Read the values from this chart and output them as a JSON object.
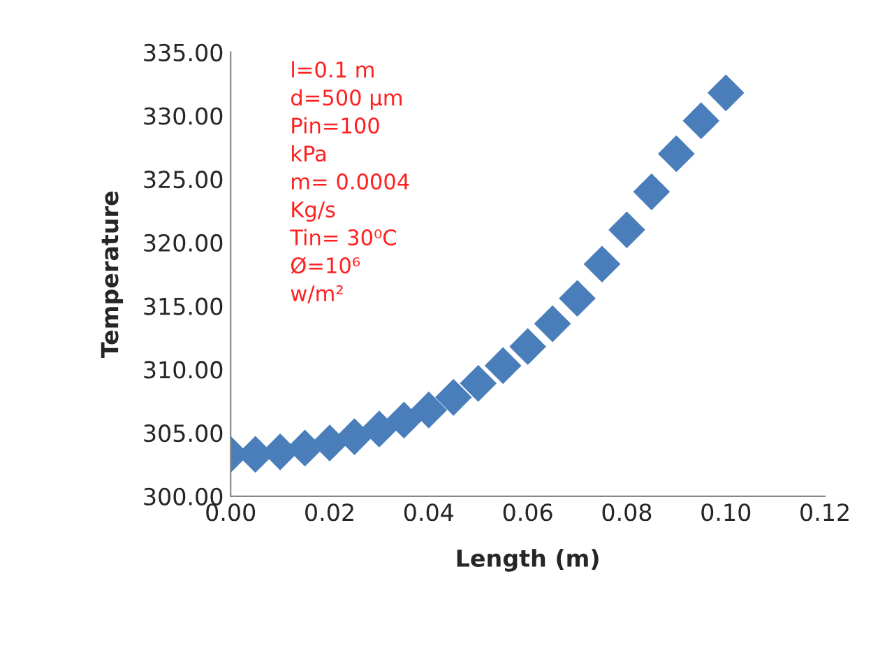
{
  "chart_data": {
    "type": "scatter",
    "xlabel": "Length (m)",
    "ylabel": "Temperature",
    "x": [
      0,
      0.005,
      0.01,
      0.015,
      0.02,
      0.025,
      0.03,
      0.035,
      0.04,
      0.045,
      0.05,
      0.055,
      0.06,
      0.065,
      0.07,
      0.075,
      0.08,
      0.085,
      0.09,
      0.095,
      0.1
    ],
    "series": [
      {
        "color": "#4a7ebb",
        "values": [
          303.3,
          303.3,
          303.5,
          303.8,
          304.2,
          304.7,
          305.3,
          306.0,
          306.8,
          307.8,
          308.9,
          310.3,
          311.8,
          313.6,
          315.6,
          318.3,
          321.0,
          324.0,
          327.0,
          329.6,
          331.8
        ]
      }
    ],
    "marker": "diamond",
    "grid": false,
    "legend": false,
    "xlim": [
      0,
      0.12
    ],
    "xticks": [
      {
        "value": 0,
        "label": "0.00"
      },
      {
        "value": 0.02,
        "label": "0.02"
      },
      {
        "value": 0.04,
        "label": "0.04"
      },
      {
        "value": 0.06,
        "label": "0.06"
      },
      {
        "value": 0.08,
        "label": "0.08"
      },
      {
        "value": 0.1,
        "label": "0.10"
      },
      {
        "value": 0.12,
        "label": "0.12"
      }
    ],
    "ylim": [
      300,
      335
    ],
    "yticks": [
      {
        "value": 300,
        "label": "300.00"
      },
      {
        "value": 305,
        "label": "305.00"
      },
      {
        "value": 310,
        "label": "310.00"
      },
      {
        "value": 315,
        "label": "315.00"
      },
      {
        "value": 320,
        "label": "320.00"
      },
      {
        "value": 325,
        "label": "325.00"
      },
      {
        "value": 330,
        "label": "330.00"
      },
      {
        "value": 335,
        "label": "335.00"
      }
    ],
    "annotations": [
      "l=0.1 m\nd=500 μm\nPin=100\nkPa\nm= 0.0004\nKg/s\nTin= 30⁰C\nØ=10⁶\nw/m²"
    ]
  }
}
